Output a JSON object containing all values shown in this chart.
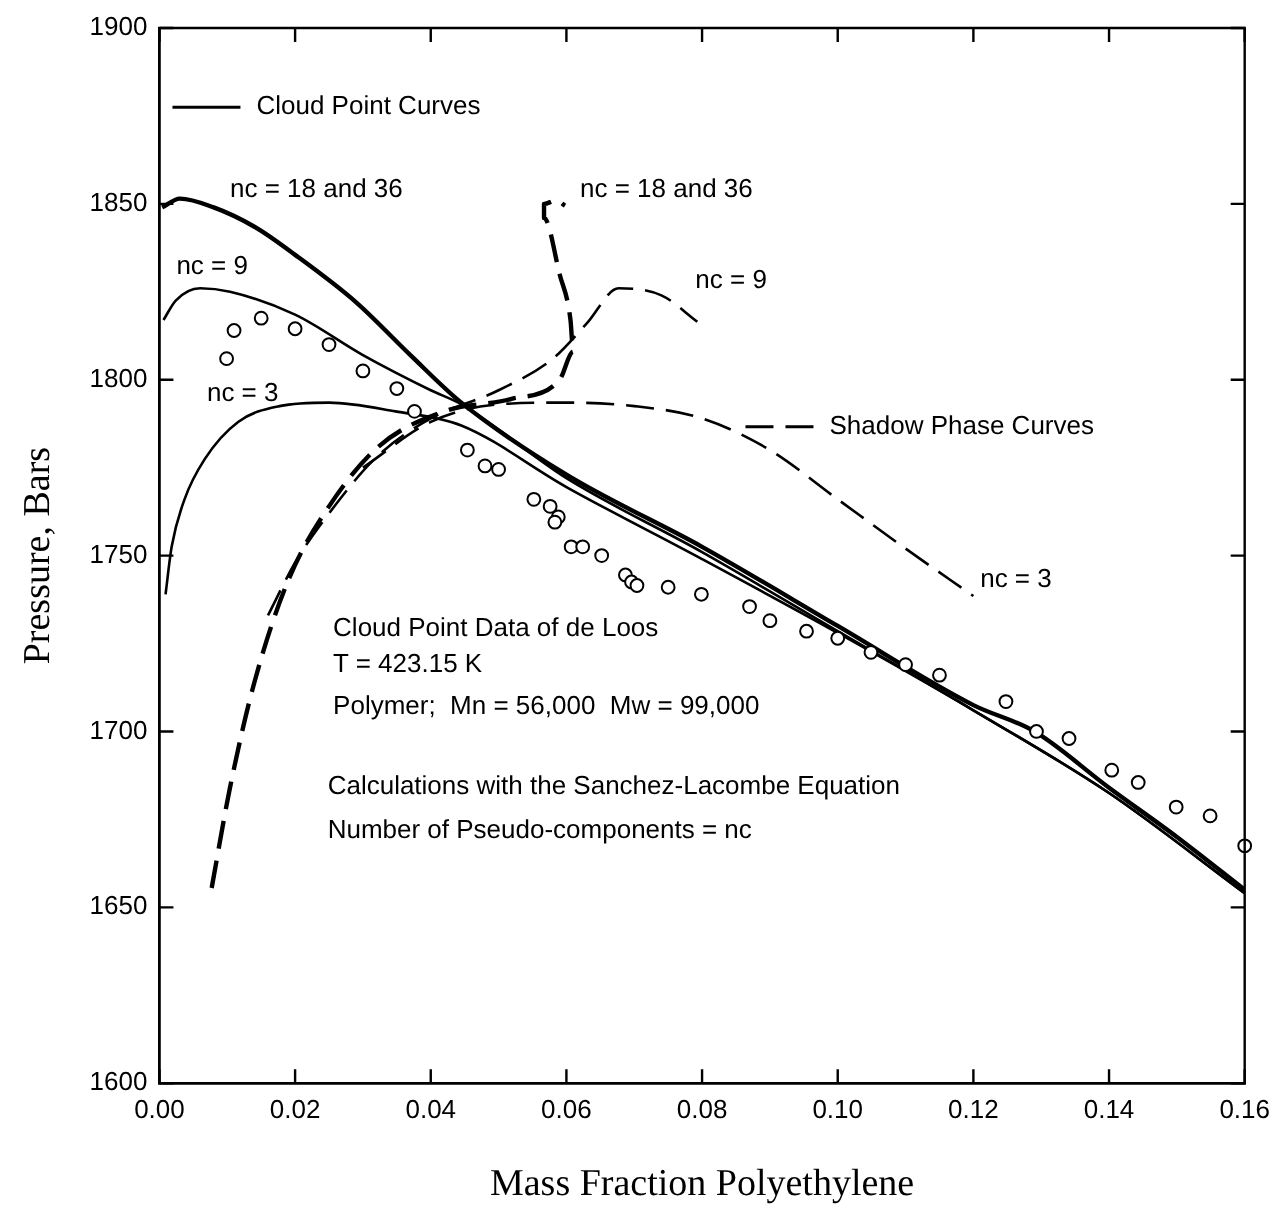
{
  "chart_data": {
    "type": "line",
    "xlabel": "Mass Fraction Polyethylene",
    "ylabel": "Pressure, Bars",
    "xlim": [
      0,
      0.16
    ],
    "xticks": [
      {
        "value": 0,
        "label": "0.00"
      },
      {
        "value": 0.02,
        "label": "0.02"
      },
      {
        "value": 0.04,
        "label": "0.04"
      },
      {
        "value": 0.06,
        "label": "0.06"
      },
      {
        "value": 0.08,
        "label": "0.08"
      },
      {
        "value": 0.1,
        "label": "0.10"
      },
      {
        "value": 0.12,
        "label": "0.12"
      },
      {
        "value": 0.14,
        "label": "0.14"
      },
      {
        "value": 0.16,
        "label": "0.16"
      }
    ],
    "ylim": [
      1600,
      1900
    ],
    "yticks": [
      1600,
      1650,
      1700,
      1750,
      1800,
      1850,
      1900
    ],
    "grid": false,
    "legend": "top left",
    "series": [
      {
        "name": "Cloud Point Curves",
        "line_style": "solid",
        "color": "#000000",
        "x": [
          0.0004,
          0.003,
          0.008,
          0.014,
          0.02,
          0.029,
          0.037,
          0.0445,
          0.06,
          0.08,
          0.1,
          0.12,
          0.129,
          0.14,
          0.15,
          0.16
        ],
        "values": [
          1849,
          1851.5,
          1849,
          1843.5,
          1835.5,
          1822,
          1807,
          1793.5,
          1773,
          1752.5,
          1730,
          1707.5,
          1700,
          1684,
          1670,
          1655
        ]
      },
      {
        "line_style": "solid",
        "color": "#000000",
        "x": [
          0.0006,
          0.0024,
          0.006,
          0.0104,
          0.02,
          0.03,
          0.04,
          0.0445,
          0.06,
          0.08,
          0.1,
          0.12,
          0.14,
          0.16
        ],
        "values": [
          1817,
          1822.5,
          1826,
          1825,
          1818.5,
          1807,
          1797,
          1793,
          1772,
          1751,
          1728.5,
          1706,
          1682.5,
          1654
        ]
      },
      {
        "line_style": "solid",
        "color": "#000000",
        "x": [
          0.0009,
          0.0018,
          0.0037,
          0.0067,
          0.0116,
          0.0177,
          0.025,
          0.0348,
          0.0445,
          0.06,
          0.08,
          0.1,
          0.12,
          0.14,
          0.16
        ],
        "values": [
          1739,
          1752.5,
          1766,
          1777.5,
          1788,
          1792.5,
          1793.5,
          1791,
          1787,
          1769.5,
          1749,
          1728,
          1706,
          1682.5,
          1654
        ]
      },
      {
        "name": "Shadow Phase Curves",
        "line_style": "dashed",
        "color": "#000000",
        "x": [
          0.0077,
          0.0104,
          0.014,
          0.019,
          0.025,
          0.0323,
          0.042,
          0.0518,
          0.059,
          0.061,
          0.0606,
          0.059,
          0.0567,
          0.0567,
          0.0585,
          0.0598
        ],
        "values": [
          1655.5,
          1684,
          1714,
          1743,
          1764,
          1781,
          1791,
          1794.5,
          1800,
          1808,
          1817,
          1830,
          1846,
          1850,
          1851,
          1849.5
        ]
      },
      {
        "line_style": "dashed",
        "color": "#000000",
        "x": [
          0.016,
          0.02,
          0.025,
          0.032,
          0.04,
          0.05,
          0.058,
          0.063,
          0.0677,
          0.074,
          0.0793
        ],
        "values": [
          1733,
          1748,
          1762,
          1778,
          1789,
          1797,
          1806,
          1816,
          1826,
          1824,
          1816.5
        ]
      },
      {
        "line_style": "dashed",
        "color": "#000000",
        "x": [
          0.03,
          0.04,
          0.05,
          0.06,
          0.07,
          0.08,
          0.09,
          0.1,
          0.11,
          0.12
        ],
        "values": [
          1775,
          1788,
          1793,
          1793.5,
          1792.5,
          1789,
          1780,
          1766,
          1752,
          1738.5
        ]
      },
      {
        "type": "scatter",
        "marker": "circle",
        "color": "#000000",
        "x": [
          0.0099,
          0.011,
          0.015,
          0.02,
          0.025,
          0.03,
          0.035,
          0.0376,
          0.0454,
          0.048,
          0.05,
          0.0552,
          0.0576,
          0.0588,
          0.0583,
          0.0607,
          0.0624,
          0.0652,
          0.0687,
          0.0696,
          0.0704,
          0.075,
          0.0799,
          0.087,
          0.09,
          0.0954,
          0.1,
          0.1049,
          0.11,
          0.115,
          0.1248,
          0.1293,
          0.1341,
          0.1404,
          0.1443,
          0.1499,
          0.1549,
          0.16
        ],
        "values": [
          1806,
          1814,
          1817.5,
          1814.5,
          1810,
          1802.5,
          1797.5,
          1791,
          1780,
          1775.5,
          1774.5,
          1766,
          1764,
          1761,
          1759.5,
          1752.5,
          1752.5,
          1750,
          1744.5,
          1742.5,
          1741.5,
          1741,
          1739,
          1735.5,
          1731.5,
          1728.5,
          1726.5,
          1722.5,
          1719,
          1716,
          1708.5,
          1700,
          1698,
          1689,
          1685.5,
          1678.5,
          1676,
          1667.5
        ]
      }
    ],
    "annotations": [
      "nc = 18 and 36",
      "nc = 9",
      "nc = 3",
      "nc = 18 and 36",
      "nc = 9",
      "nc = 3",
      "Cloud Point Data of de Loos",
      "T = 423.15 K",
      "Polymer;  Mn = 56,000  Mw = 99,000",
      "Calculations with the Sanchez-Lacombe Equation",
      "Number of Pseudo-components = nc"
    ]
  }
}
